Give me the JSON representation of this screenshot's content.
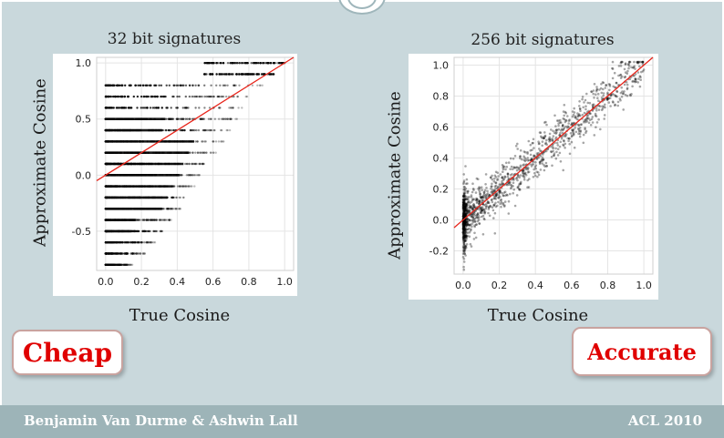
{
  "footer": {
    "authors": "Benjamin Van Durme & Ashwin Lall",
    "venue": "ACL 2010"
  },
  "labels": {
    "cheap": "Cheap",
    "accurate": "Accurate"
  },
  "chart_data": [
    {
      "type": "scatter",
      "title": "32 bit signatures",
      "xlabel": "True Cosine",
      "ylabel": "Approximate Cosine",
      "xlim": [
        -0.05,
        1.05
      ],
      "ylim": [
        -0.85,
        1.05
      ],
      "xticks": [
        0.0,
        0.2,
        0.4,
        0.6,
        0.8,
        1.0
      ],
      "xtick_labels": [
        "0.0",
        "0.2",
        "0.4",
        "0.6",
        "0.8",
        "1.0"
      ],
      "yticks": [
        -0.5,
        0.0,
        0.5,
        1.0
      ],
      "ytick_labels": [
        "-0.5",
        "0.0",
        "0.5",
        "1.0"
      ],
      "grid": true,
      "point_color": "#000000",
      "fit_line": {
        "color": "#e8251b",
        "x": [
          -0.05,
          1.05
        ],
        "y": [
          -0.05,
          1.05
        ]
      },
      "quantized_levels": [
        -0.8,
        -0.7,
        -0.6,
        -0.5,
        -0.4,
        -0.3,
        -0.2,
        -0.1,
        0.0,
        0.1,
        0.2,
        0.3,
        0.4,
        0.5,
        0.6,
        0.7,
        0.8,
        0.9,
        1.0
      ],
      "level_x_extent": [
        0.15,
        0.22,
        0.28,
        0.32,
        0.38,
        0.42,
        0.46,
        0.5,
        0.55,
        0.58,
        0.62,
        0.66,
        0.7,
        0.74,
        0.78,
        0.82,
        0.88,
        0.94,
        1.0
      ]
    },
    {
      "type": "scatter",
      "title": "256 bit signatures",
      "xlabel": "True Cosine",
      "ylabel": "Approximate Cosine",
      "xlim": [
        -0.05,
        1.05
      ],
      "ylim": [
        -0.35,
        1.05
      ],
      "xticks": [
        0.0,
        0.2,
        0.4,
        0.6,
        0.8,
        1.0
      ],
      "xtick_labels": [
        "0.0",
        "0.2",
        "0.4",
        "0.6",
        "0.8",
        "1.0"
      ],
      "yticks": [
        -0.2,
        0.0,
        0.2,
        0.4,
        0.6,
        0.8,
        1.0
      ],
      "ytick_labels": [
        "-0.2",
        "0.0",
        "0.2",
        "0.4",
        "0.6",
        "0.8",
        "1.0"
      ],
      "grid": true,
      "point_color": "#000000",
      "fit_line": {
        "color": "#e8251b",
        "x": [
          -0.05,
          1.05
        ],
        "y": [
          -0.05,
          1.05
        ]
      },
      "spread_sd": 0.07
    }
  ]
}
